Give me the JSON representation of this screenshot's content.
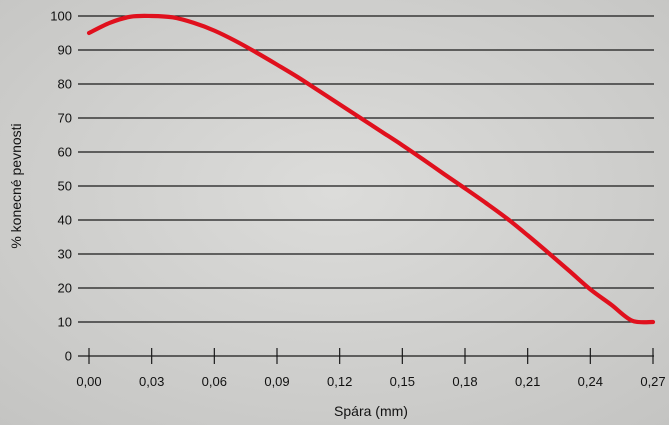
{
  "chart_data": {
    "type": "line",
    "xlabel": "Spára (mm)",
    "ylabel": "% konecné pevnosti",
    "xlim": [
      0,
      0.27
    ],
    "ylim": [
      0,
      100
    ],
    "x_ticks": [
      "0,00",
      "0,03",
      "0,06",
      "0,09",
      "0,12",
      "0,15",
      "0,18",
      "0,21",
      "0,24",
      "0,27"
    ],
    "y_ticks": [
      "0",
      "10",
      "20",
      "30",
      "40",
      "50",
      "60",
      "70",
      "80",
      "90",
      "100"
    ],
    "grid": "horizontal",
    "series": [
      {
        "color": "#e0101d",
        "x": [
          0.0,
          0.01,
          0.02,
          0.03,
          0.04,
          0.05,
          0.06,
          0.07,
          0.08,
          0.09,
          0.1,
          0.11,
          0.12,
          0.13,
          0.14,
          0.15,
          0.16,
          0.17,
          0.18,
          0.19,
          0.2,
          0.21,
          0.22,
          0.23,
          0.24,
          0.25,
          0.26,
          0.27
        ],
        "y": [
          95,
          98,
          99.8,
          100,
          99.6,
          98,
          95.7,
          92.7,
          89.3,
          85.7,
          82,
          78,
          74,
          70,
          66,
          62,
          57.8,
          53.5,
          49.3,
          45,
          40.5,
          35.5,
          30.3,
          25,
          19.6,
          15.1,
          10.4,
          10
        ]
      }
    ]
  }
}
